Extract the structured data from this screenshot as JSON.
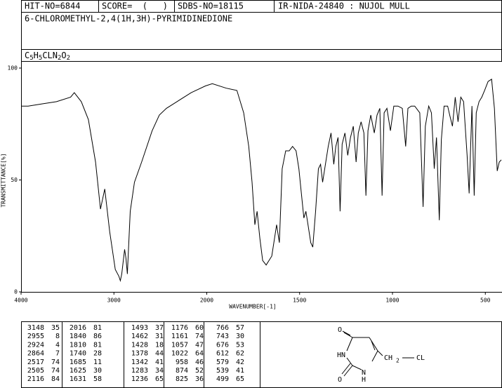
{
  "header": {
    "hit_no": "HIT-NO=6844",
    "score": "SCORE=  (   )",
    "sdbs_no": "SDBS-NO=18115",
    "method": "IR-NIDA-24840 : NUJOL MULL"
  },
  "compound_name": "6-CHLOROMETHYL-2,4(1H,3H)-PYRIMIDINEDIONE",
  "formula": [
    "C",
    "5",
    "H",
    "5",
    "CLN",
    "2",
    "O",
    "2"
  ],
  "chart_data": {
    "type": "line",
    "xlabel": "WAVENUMBER[-1]",
    "ylabel": "TRANSMITTANCE[%]",
    "x": [
      4000,
      3924,
      3771,
      3618,
      3466,
      3427,
      3351,
      3275,
      3198,
      3145,
      3099,
      3046,
      2985,
      2947,
      2931,
      2916,
      2885,
      2870,
      2855,
      2824,
      2779,
      2702,
      2588,
      2511,
      2435,
      2321,
      2168,
      2015,
      1970,
      1895,
      1838,
      1801,
      1774,
      1756,
      1741,
      1729,
      1714,
      1699,
      1680,
      1650,
      1624,
      1609,
      1594,
      1575,
      1556,
      1538,
      1519,
      1504,
      1493,
      1477,
      1466,
      1455,
      1440,
      1429,
      1414,
      1399,
      1387,
      1376,
      1361,
      1346,
      1331,
      1316,
      1305,
      1293,
      1282,
      1271,
      1256,
      1241,
      1226,
      1211,
      1196,
      1184,
      1169,
      1154,
      1143,
      1132,
      1117,
      1098,
      1083,
      1068,
      1056,
      1045,
      1030,
      1011,
      993,
      970,
      947,
      929,
      917,
      899,
      880,
      853,
      835,
      823,
      805,
      790,
      775,
      763,
      748,
      737,
      722,
      703,
      692,
      677,
      662,
      647,
      632,
      617,
      598,
      587,
      572,
      560,
      549,
      534,
      519,
      504,
      485,
      466,
      451,
      436,
      425,
      414
    ],
    "values": [
      83,
      83,
      84,
      85,
      87,
      89,
      85,
      77,
      58,
      37,
      46,
      27,
      10,
      7,
      5,
      8,
      19,
      15,
      8,
      36,
      49,
      58,
      72,
      79,
      82,
      85,
      89,
      92,
      93,
      91,
      90,
      80,
      65,
      49,
      30,
      36,
      24,
      14,
      12,
      16,
      30,
      22,
      55,
      63,
      63,
      65,
      63,
      55,
      46,
      33,
      36,
      30,
      22,
      20,
      36,
      55,
      57,
      49,
      57,
      65,
      71,
      57,
      65,
      69,
      36,
      66,
      71,
      61,
      69,
      74,
      58,
      71,
      76,
      71,
      43,
      72,
      79,
      71,
      79,
      82,
      43,
      80,
      82,
      72,
      83,
      83,
      82,
      65,
      82,
      83,
      83,
      80,
      38,
      74,
      83,
      80,
      55,
      69,
      32,
      68,
      83,
      83,
      79,
      74,
      87,
      76,
      87,
      85,
      61,
      44,
      83,
      43,
      80,
      85,
      87,
      90,
      94,
      95,
      82,
      54,
      58,
      59
    ],
    "color": "#000000",
    "xlim": [
      4000,
      414
    ],
    "xticks": [
      4000,
      3000,
      2000,
      1500,
      1000,
      500
    ],
    "x_break": 2000,
    "x_break_factor": 2,
    "ylim": [
      0,
      100
    ],
    "yticks": [
      0,
      50,
      100
    ]
  },
  "peak_table": [
    [
      [
        3148,
        35
      ],
      [
        2955,
        8
      ],
      [
        2924,
        4
      ],
      [
        2864,
        7
      ],
      [
        2517,
        74
      ],
      [
        2505,
        74
      ],
      [
        2116,
        84
      ]
    ],
    [
      [
        2016,
        81
      ],
      [
        1840,
        86
      ],
      [
        1810,
        81
      ],
      [
        1740,
        28
      ],
      [
        1685,
        11
      ],
      [
        1625,
        30
      ],
      [
        1631,
        58
      ]
    ],
    [
      [
        1493,
        37
      ],
      [
        1462,
        31
      ],
      [
        1428,
        18
      ],
      [
        1378,
        44
      ],
      [
        1342,
        41
      ],
      [
        1283,
        34
      ],
      [
        1236,
        65
      ]
    ],
    [
      [
        1176,
        60
      ],
      [
        1161,
        74
      ],
      [
        1057,
        47
      ],
      [
        1022,
        64
      ],
      [
        958,
        46
      ],
      [
        874,
        52
      ],
      [
        825,
        36
      ]
    ],
    [
      [
        766,
        57
      ],
      [
        743,
        30
      ],
      [
        676,
        53
      ],
      [
        612,
        62
      ],
      [
        579,
        42
      ],
      [
        539,
        41
      ],
      [
        499,
        65
      ]
    ]
  ],
  "structure": {
    "o_top": "O",
    "o_bottom": "O",
    "hn": "HN",
    "n": "N",
    "h": "H",
    "ch": "CH",
    "sub2": "2",
    "cl": "CL"
  }
}
